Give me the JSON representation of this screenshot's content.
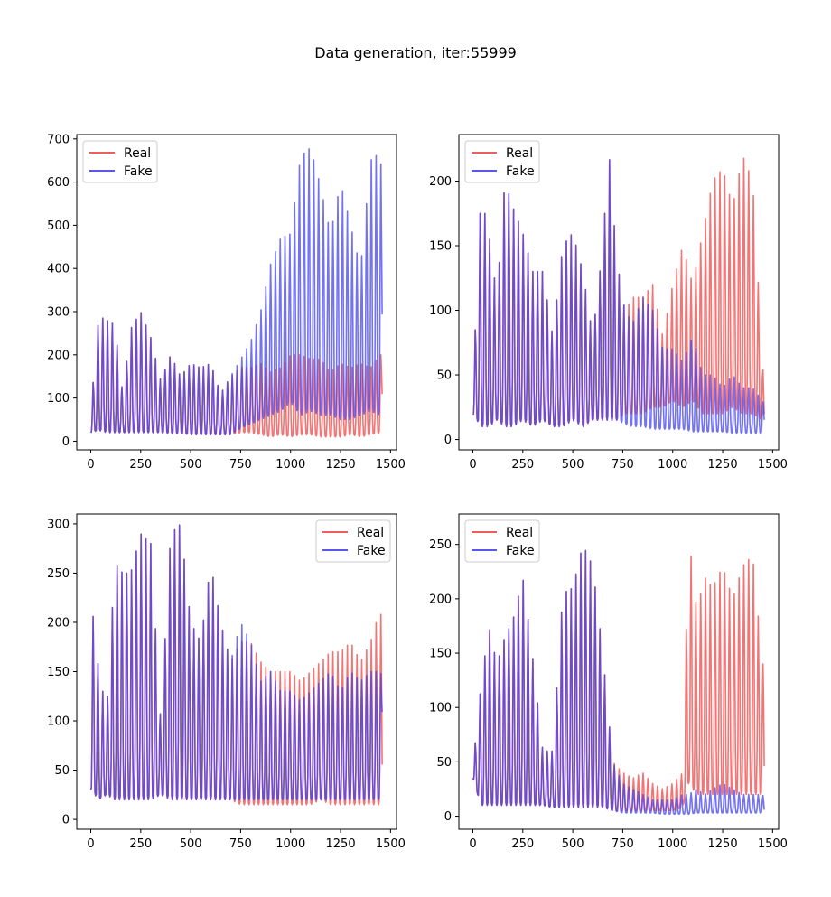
{
  "figure": {
    "title": "Data generation, iter:55999"
  },
  "colors": {
    "real": "#ef3f3f",
    "fake": "#3b3bef"
  },
  "chart_data": [
    {
      "type": "line",
      "title": "",
      "xlabel": "",
      "ylabel": "",
      "xlim": [
        -70,
        1530
      ],
      "ylim": [
        -20,
        710
      ],
      "xticks": [
        0,
        250,
        500,
        750,
        1000,
        1250,
        1500
      ],
      "yticks": [
        0,
        100,
        200,
        300,
        400,
        500,
        600,
        700
      ],
      "legend": "upper-left",
      "grid": false,
      "series": [
        {
          "name": "Real",
          "color": "#ef3f3f",
          "x": [
            0,
            40,
            80,
            120,
            160,
            200,
            250,
            300,
            350,
            400,
            450,
            500,
            550,
            600,
            650,
            700,
            750,
            800,
            850,
            900,
            950,
            1000,
            1050,
            1100,
            1150,
            1200,
            1250,
            1300,
            1350,
            1400,
            1450,
            1460
          ],
          "peak": [
            70,
            290,
            280,
            270,
            110,
            260,
            300,
            240,
            140,
            200,
            150,
            180,
            170,
            180,
            110,
            150,
            170,
            170,
            180,
            160,
            170,
            200,
            200,
            190,
            190,
            160,
            180,
            170,
            180,
            170,
            200,
            200
          ],
          "trough": [
            20,
            25,
            20,
            20,
            20,
            20,
            20,
            20,
            20,
            18,
            18,
            15,
            15,
            15,
            15,
            15,
            20,
            20,
            15,
            10,
            15,
            10,
            15,
            15,
            10,
            10,
            10,
            15,
            10,
            15,
            20,
            100
          ]
        },
        {
          "name": "Fake",
          "color": "#3b3bef",
          "x": [
            0,
            40,
            80,
            120,
            160,
            200,
            250,
            300,
            350,
            400,
            450,
            500,
            550,
            600,
            650,
            700,
            750,
            800,
            850,
            900,
            950,
            1000,
            1050,
            1100,
            1150,
            1200,
            1250,
            1300,
            1350,
            1400,
            1450,
            1460
          ],
          "peak": [
            70,
            290,
            280,
            270,
            110,
            260,
            300,
            240,
            140,
            200,
            150,
            180,
            170,
            180,
            110,
            150,
            190,
            230,
            300,
            410,
            470,
            480,
            660,
            680,
            590,
            480,
            600,
            500,
            400,
            650,
            670,
            530
          ],
          "trough": [
            20,
            25,
            20,
            20,
            20,
            20,
            20,
            20,
            20,
            18,
            18,
            15,
            15,
            15,
            15,
            15,
            30,
            40,
            50,
            60,
            70,
            90,
            60,
            70,
            60,
            60,
            50,
            50,
            60,
            70,
            60,
            260
          ]
        }
      ]
    },
    {
      "type": "line",
      "title": "",
      "xlabel": "",
      "ylabel": "",
      "xlim": [
        -70,
        1530
      ],
      "ylim": [
        -8,
        236
      ],
      "xticks": [
        0,
        250,
        500,
        750,
        1000,
        1250,
        1500
      ],
      "yticks": [
        0,
        50,
        100,
        150,
        200
      ],
      "legend": "upper-left",
      "grid": false,
      "series": [
        {
          "name": "Real",
          "color": "#ef3f3f",
          "x": [
            0,
            40,
            80,
            120,
            160,
            200,
            250,
            300,
            350,
            400,
            450,
            500,
            550,
            600,
            650,
            680,
            720,
            760,
            800,
            850,
            900,
            950,
            1000,
            1050,
            1100,
            1150,
            1200,
            1250,
            1300,
            1350,
            1400,
            1450,
            1460
          ],
          "peak": [
            40,
            190,
            160,
            110,
            200,
            180,
            160,
            130,
            130,
            80,
            150,
            160,
            130,
            80,
            150,
            225,
            140,
            100,
            110,
            110,
            120,
            80,
            120,
            150,
            120,
            160,
            200,
            210,
            180,
            220,
            200,
            60,
            30
          ],
          "trough": [
            20,
            10,
            10,
            15,
            10,
            10,
            15,
            10,
            15,
            10,
            10,
            15,
            10,
            15,
            15,
            15,
            15,
            20,
            20,
            20,
            25,
            25,
            30,
            25,
            30,
            20,
            20,
            20,
            25,
            20,
            20,
            15,
            15
          ]
        },
        {
          "name": "Fake",
          "color": "#3b3bef",
          "x": [
            0,
            40,
            80,
            120,
            160,
            200,
            250,
            300,
            350,
            400,
            450,
            500,
            550,
            600,
            650,
            680,
            720,
            760,
            800,
            850,
            900,
            950,
            1000,
            1050,
            1100,
            1150,
            1200,
            1250,
            1300,
            1350,
            1400,
            1450,
            1460
          ],
          "peak": [
            40,
            190,
            160,
            110,
            200,
            180,
            160,
            130,
            130,
            80,
            150,
            160,
            130,
            80,
            150,
            225,
            140,
            100,
            90,
            110,
            100,
            70,
            70,
            60,
            80,
            50,
            50,
            40,
            50,
            40,
            40,
            30,
            25
          ],
          "trough": [
            20,
            10,
            10,
            15,
            10,
            10,
            15,
            10,
            15,
            10,
            10,
            15,
            10,
            15,
            15,
            15,
            15,
            12,
            10,
            10,
            8,
            8,
            8,
            8,
            6,
            6,
            6,
            6,
            5,
            5,
            5,
            5,
            14
          ]
        }
      ]
    },
    {
      "type": "line",
      "title": "",
      "xlabel": "",
      "ylabel": "",
      "xlim": [
        -70,
        1530
      ],
      "ylim": [
        -10,
        310
      ],
      "xticks": [
        0,
        250,
        500,
        750,
        1000,
        1250,
        1500
      ],
      "yticks": [
        0,
        50,
        100,
        150,
        200,
        250,
        300
      ],
      "legend": "upper-right",
      "grid": false,
      "series": [
        {
          "name": "Real",
          "color": "#ef3f3f",
          "x": [
            0,
            40,
            80,
            120,
            160,
            200,
            250,
            300,
            350,
            400,
            450,
            500,
            550,
            600,
            650,
            700,
            750,
            800,
            850,
            900,
            950,
            1000,
            1050,
            1100,
            1150,
            1200,
            1250,
            1300,
            1350,
            1400,
            1450,
            1460
          ],
          "peak": [
            230,
            150,
            110,
            260,
            250,
            250,
            290,
            280,
            100,
            290,
            300,
            200,
            180,
            260,
            200,
            160,
            180,
            180,
            160,
            150,
            150,
            150,
            140,
            150,
            160,
            170,
            170,
            180,
            160,
            180,
            215,
            180
          ],
          "trough": [
            30,
            20,
            25,
            20,
            20,
            20,
            20,
            20,
            25,
            20,
            20,
            20,
            20,
            20,
            20,
            20,
            15,
            15,
            15,
            15,
            15,
            15,
            15,
            15,
            20,
            15,
            15,
            15,
            15,
            15,
            15,
            20
          ]
        },
        {
          "name": "Fake",
          "color": "#3b3bef",
          "x": [
            0,
            40,
            80,
            120,
            160,
            200,
            250,
            300,
            350,
            400,
            450,
            500,
            550,
            600,
            650,
            700,
            750,
            800,
            850,
            900,
            950,
            1000,
            1050,
            1100,
            1150,
            1200,
            1250,
            1300,
            1350,
            1400,
            1450,
            1460
          ],
          "peak": [
            230,
            150,
            110,
            260,
            250,
            250,
            290,
            280,
            100,
            290,
            300,
            200,
            180,
            260,
            200,
            160,
            200,
            180,
            140,
            150,
            130,
            130,
            120,
            130,
            140,
            150,
            130,
            150,
            140,
            150,
            150,
            140
          ],
          "trough": [
            30,
            20,
            25,
            20,
            20,
            20,
            20,
            20,
            25,
            20,
            20,
            20,
            20,
            20,
            20,
            20,
            20,
            20,
            20,
            20,
            20,
            20,
            20,
            20,
            20,
            20,
            20,
            20,
            20,
            20,
            20,
            120
          ]
        }
      ]
    },
    {
      "type": "line",
      "title": "",
      "xlabel": "",
      "ylabel": "",
      "xlim": [
        -70,
        1530
      ],
      "ylim": [
        -12,
        278
      ],
      "xticks": [
        0,
        250,
        500,
        750,
        1000,
        1250,
        1500
      ],
      "yticks": [
        0,
        50,
        100,
        150,
        200,
        250
      ],
      "legend": "upper-left",
      "grid": false,
      "series": [
        {
          "name": "Real",
          "color": "#ef3f3f",
          "x": [
            0,
            40,
            80,
            120,
            160,
            200,
            250,
            300,
            350,
            400,
            450,
            500,
            550,
            600,
            650,
            700,
            750,
            800,
            850,
            900,
            950,
            1000,
            1050,
            1080,
            1120,
            1160,
            1200,
            1250,
            1300,
            1350,
            1400,
            1450,
            1460
          ],
          "peak": [
            45,
            120,
            175,
            140,
            165,
            180,
            220,
            145,
            60,
            60,
            205,
            210,
            250,
            230,
            150,
            50,
            40,
            35,
            40,
            30,
            25,
            30,
            40,
            260,
            190,
            220,
            210,
            230,
            200,
            230,
            240,
            140,
            140
          ],
          "trough": [
            35,
            10,
            10,
            10,
            10,
            10,
            10,
            10,
            10,
            8,
            8,
            8,
            8,
            8,
            8,
            5,
            5,
            5,
            5,
            5,
            5,
            5,
            8,
            30,
            20,
            20,
            20,
            20,
            20,
            20,
            20,
            20,
            20
          ]
        },
        {
          "name": "Fake",
          "color": "#3b3bef",
          "x": [
            0,
            40,
            80,
            120,
            160,
            200,
            250,
            300,
            350,
            400,
            450,
            500,
            550,
            600,
            650,
            700,
            750,
            800,
            850,
            900,
            950,
            1000,
            1050,
            1080,
            1120,
            1160,
            1200,
            1250,
            1300,
            1350,
            1400,
            1450,
            1460
          ],
          "peak": [
            45,
            120,
            175,
            140,
            165,
            180,
            220,
            145,
            60,
            60,
            205,
            210,
            250,
            230,
            150,
            50,
            30,
            25,
            20,
            15,
            15,
            15,
            20,
            20,
            25,
            20,
            25,
            30,
            25,
            20,
            20,
            20,
            15
          ],
          "trough": [
            35,
            10,
            10,
            10,
            10,
            10,
            10,
            10,
            10,
            8,
            8,
            8,
            8,
            8,
            8,
            5,
            3,
            3,
            3,
            3,
            2,
            2,
            2,
            2,
            3,
            3,
            3,
            3,
            3,
            3,
            3,
            3,
            3
          ]
        }
      ]
    }
  ]
}
